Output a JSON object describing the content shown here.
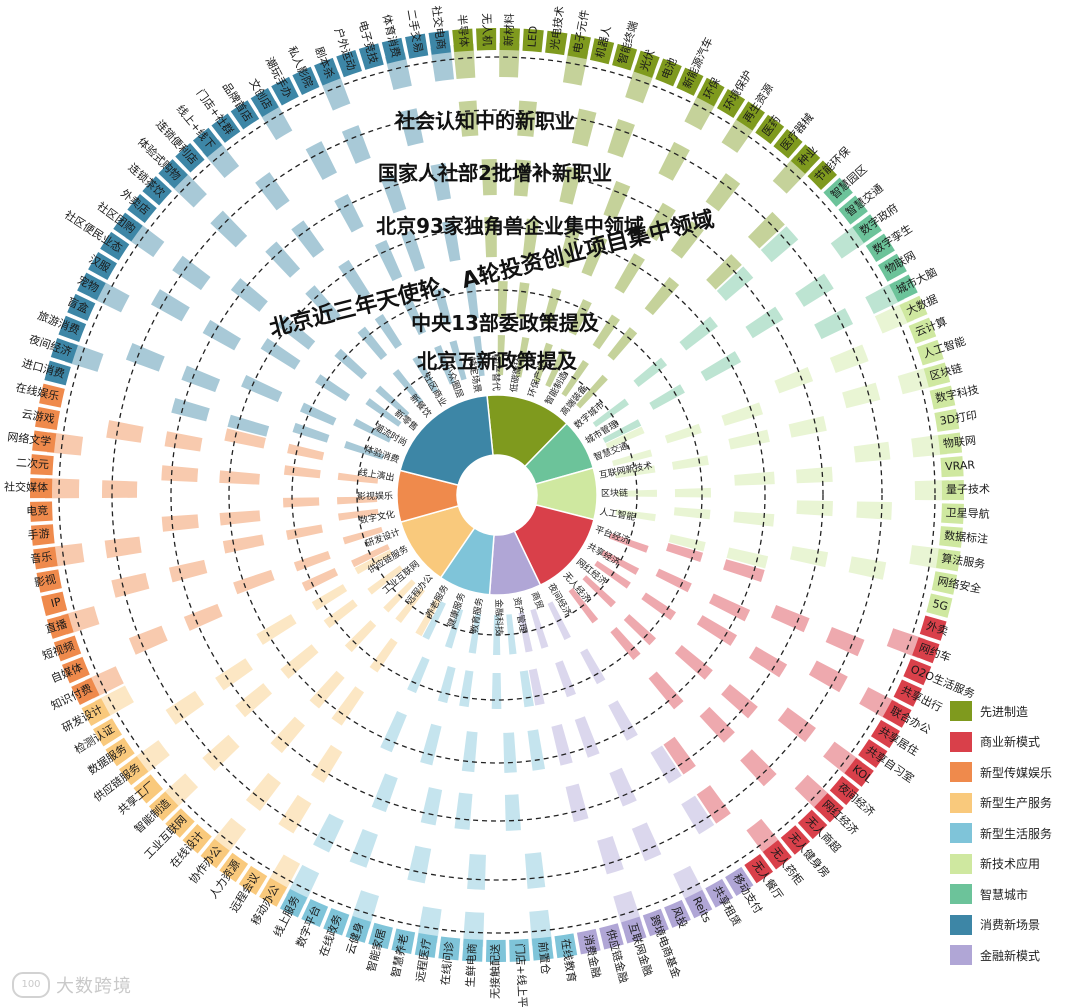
{
  "ring_titles": [
    "社会认知中的新职业",
    "国家人社部2批增补新职业",
    "北京93家独角兽企业集中领域",
    "北京近三年天使轮、A轮投资创业项目集中领域",
    "中央13部委政策提及",
    "北京五新政策提及"
  ],
  "legend": [
    {
      "key": "adv",
      "label": "先进制造",
      "color": "#7f9a1e"
    },
    {
      "key": "biz",
      "label": "商业新模式",
      "color": "#d9404a"
    },
    {
      "key": "media",
      "label": "新型传媒娱乐",
      "color": "#ef8a4c"
    },
    {
      "key": "prod",
      "label": "新型生产服务",
      "color": "#f9c97c"
    },
    {
      "key": "life",
      "label": "新型生活服务",
      "color": "#7fc4d9"
    },
    {
      "key": "tech",
      "label": "新技术应用",
      "color": "#cfe8a0"
    },
    {
      "key": "city",
      "label": "智慧城市",
      "color": "#6cc39a"
    },
    {
      "key": "cons",
      "label": "消费新场景",
      "color": "#3d86a6"
    },
    {
      "key": "fin",
      "label": "金融新模式",
      "color": "#b0a6d6"
    }
  ],
  "watermark": {
    "logo": "100",
    "text": "大数跨境"
  },
  "chart_data": {
    "type": "sunburst",
    "grid": "dashed concentric rings",
    "legend_position": "bottom-right",
    "categories": [
      {
        "key": "adv",
        "name": "先进制造",
        "items": [
          "半导体",
          "无人机",
          "新材料",
          "LED",
          "光电技术",
          "电子元件",
          "机器人",
          "智能终端",
          "光伏",
          "电池",
          "新能源汽车",
          "环保",
          "环境保护",
          "再生资源",
          "医药",
          "医疗器械",
          "种业",
          "节能环保"
        ]
      },
      {
        "key": "city",
        "name": "智慧城市",
        "items": [
          "智慧园区",
          "智慧交通",
          "数字政府",
          "数字孪生",
          "物联网",
          "城市大脑"
        ]
      },
      {
        "key": "tech",
        "name": "新技术应用",
        "items": [
          "大数据",
          "云计算",
          "人工智能",
          "区块链",
          "数字科技",
          "3D打印",
          "物联网",
          "VRAR",
          "量子技术",
          "卫星导航",
          "数据标注",
          "算法服务",
          "网络安全",
          "5G"
        ]
      },
      {
        "key": "biz",
        "name": "商业新模式",
        "items": [
          "外卖",
          "网约车",
          "O2O生活服务",
          "共享出行",
          "联合办公",
          "共享居住",
          "共享自习室",
          "KOL",
          "夜间经济",
          "网红经济",
          "无人商超",
          "无人健身房",
          "无人药柜",
          "无人餐厅"
        ]
      },
      {
        "key": "fin",
        "name": "金融新模式",
        "items": [
          "移动支付",
          "共享租赁",
          "Reits",
          "风投",
          "跨境电商基金",
          "互联网金融",
          "供应链金融",
          "消费金融"
        ]
      },
      {
        "key": "life",
        "name": "新型生活服务",
        "items": [
          "在线教育",
          "前置仓",
          "门店+线上平台",
          "无接触配送",
          "生鲜电商",
          "在线问诊",
          "远程医疗",
          "智慧养老",
          "智能家居",
          "云健身",
          "在线政务",
          "数字平台",
          "线上服务"
        ]
      },
      {
        "key": "prod",
        "name": "新型生产服务",
        "items": [
          "移动办公",
          "远程会议",
          "人力资源",
          "协作办公",
          "在线设计",
          "工业互联网",
          "智能制造",
          "共享工厂",
          "供应链服务",
          "数据服务",
          "检测认证",
          "研发设计"
        ]
      },
      {
        "key": "media",
        "name": "新型传媒娱乐",
        "items": [
          "知识付费",
          "自媒体",
          "短视频",
          "直播",
          "IP",
          "影视",
          "音乐",
          "手游",
          "电竞",
          "社交媒体",
          "二次元",
          "网络文学",
          "云游戏",
          "在线娱乐"
        ]
      },
      {
        "key": "cons",
        "name": "消费新场景",
        "items": [
          "进口消费",
          "夜间经济",
          "旅游消费",
          "盲盒",
          "宠物",
          "汉服",
          "社区便民业态",
          "社区团购",
          "外卖店",
          "连锁茶饮",
          "体验式购物",
          "连锁便利店",
          "线上+线下",
          "门店+社群",
          "品牌首店",
          "文创店",
          "潮玩手办",
          "私人影院",
          "剧本杀",
          "户外运动",
          "电子竞技",
          "体育消费",
          "二手交易",
          "社交电商"
        ]
      }
    ],
    "inner_ring": [
      {
        "key": "adv",
        "labels": [
          "国产替代",
          "低碳循环",
          "环保产业",
          "智能制造",
          "高端装备"
        ]
      },
      {
        "key": "city",
        "labels": [
          "数字城市",
          "城市管理",
          "智慧交通"
        ]
      },
      {
        "key": "tech",
        "labels": [
          "互联网新技术",
          "区块链",
          "人工智能"
        ]
      },
      {
        "key": "biz",
        "labels": [
          "平台经济",
          "共享经济",
          "网红经济",
          "无人经济",
          "夜间经济"
        ]
      },
      {
        "key": "fin",
        "labels": [
          "商贸",
          "资产管理",
          "金融科技"
        ]
      },
      {
        "key": "life",
        "labels": [
          "教育服务",
          "健康服务",
          "养老服务"
        ]
      },
      {
        "key": "prod",
        "labels": [
          "远程办公",
          "工业互联网",
          "供应链服务",
          "研发设计"
        ]
      },
      {
        "key": "media",
        "labels": [
          "数字文化",
          "影视娱乐",
          "线上演出"
        ]
      },
      {
        "key": "cons",
        "labels": [
          "体验消费",
          "潮流时尚",
          "新零售",
          "新餐饮",
          "社区商业",
          "小众圈层",
          "特定场景"
        ]
      }
    ]
  }
}
